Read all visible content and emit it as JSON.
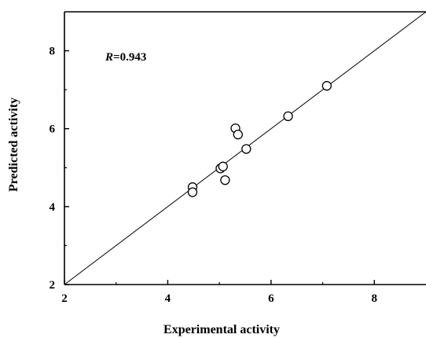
{
  "chart_data": {
    "type": "scatter",
    "title": "",
    "xlabel": "Experimental activity",
    "ylabel": "Predicted activity",
    "xlim": [
      2,
      9
    ],
    "ylim": [
      2,
      9
    ],
    "xticks": [
      2,
      4,
      6,
      8
    ],
    "yticks": [
      2,
      4,
      6,
      8
    ],
    "x_tick_labels": [
      "2",
      "4",
      "6",
      "8"
    ],
    "y_tick_labels": [
      "2",
      "4",
      "6",
      "8"
    ],
    "annotation": {
      "prefix": "R",
      "value": "=0.943"
    },
    "fit_line": {
      "x": [
        2,
        9
      ],
      "y": [
        2,
        9
      ]
    },
    "grid": false,
    "points": [
      {
        "x": 4.48,
        "y": 4.5
      },
      {
        "x": 4.48,
        "y": 4.37
      },
      {
        "x": 5.02,
        "y": 4.98
      },
      {
        "x": 5.07,
        "y": 5.03
      },
      {
        "x": 5.11,
        "y": 4.68
      },
      {
        "x": 5.31,
        "y": 6.01
      },
      {
        "x": 5.36,
        "y": 5.85
      },
      {
        "x": 5.52,
        "y": 5.48
      },
      {
        "x": 6.33,
        "y": 6.32
      },
      {
        "x": 7.08,
        "y": 7.1
      }
    ]
  }
}
